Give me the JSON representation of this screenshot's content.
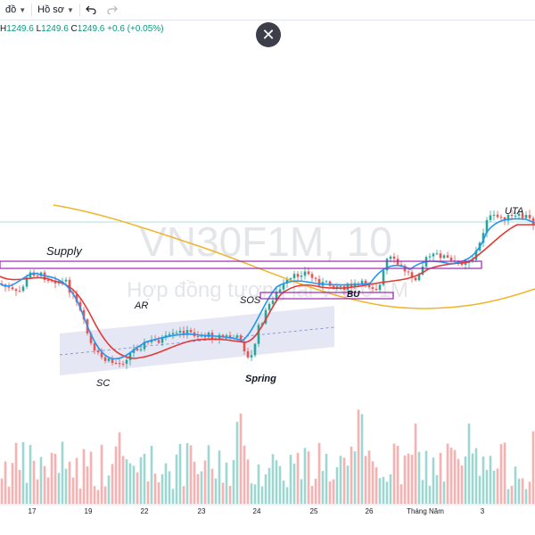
{
  "toolbar": {
    "layout_label": "đồ",
    "profile_label": "Hồ sơ",
    "undo_icon": "undo-icon",
    "redo_icon": "redo-icon"
  },
  "ohlc": {
    "h_label": "H",
    "h_value": "1249.6",
    "l_label": "L",
    "l_value": "1249.6",
    "c_label": "C",
    "c_value": "1249.6",
    "change": "+0.6 (+0.05%)"
  },
  "close_button": {
    "icon": "close-icon",
    "glyph": "✕"
  },
  "watermark": {
    "symbol": "VN30F1M, 10",
    "description": "Hợp đồng tương lai VN30 1M"
  },
  "annotations": {
    "supply": "Supply",
    "ar": "AR",
    "sc": "SC",
    "sos": "SOS",
    "spring": "Spring",
    "bu": "BU",
    "uta": "UTA"
  },
  "time_axis": [
    "17",
    "19",
    "22",
    "23",
    "24",
    "25",
    "26",
    "Tháng Năm",
    "3"
  ],
  "colors": {
    "up": "#26a69a",
    "down": "#ef5350",
    "ma_fast": "#2196f3",
    "ma_mid": "#e53935",
    "ma_slow": "#f0b429",
    "zone": "#9c27b0",
    "channel": "#c5cae9"
  }
}
